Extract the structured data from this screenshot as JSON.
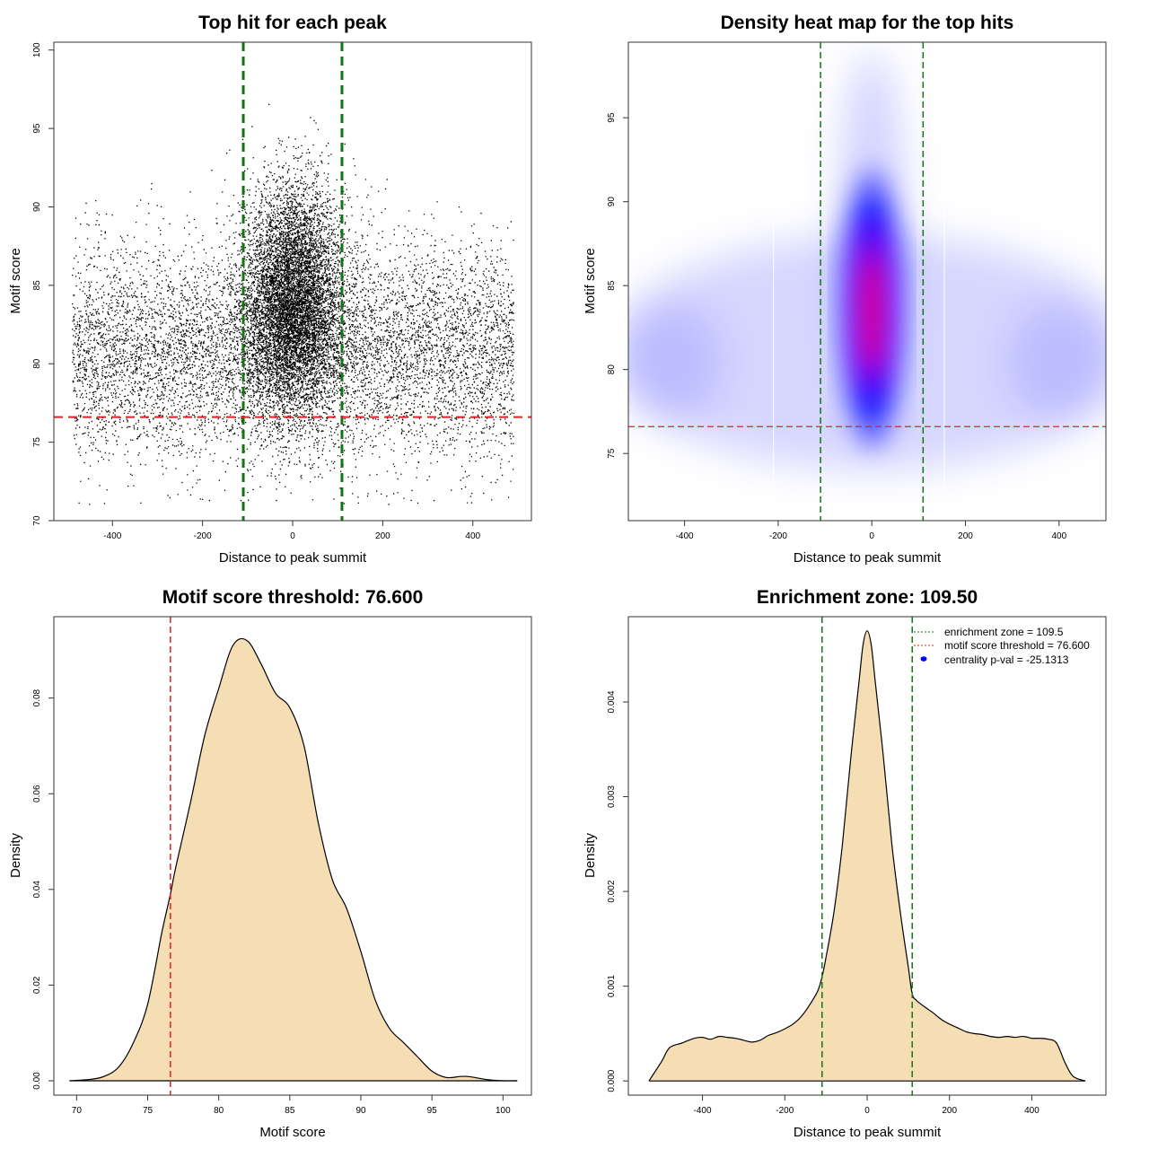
{
  "colors": {
    "points": "#000000",
    "threshold_line": "#dd2222",
    "zone_line": "#117711",
    "fill": "#f5deb3",
    "heat_low": "#ffffff",
    "heat_mid": "#0000ff",
    "heat_high": "#ff0000",
    "centrality_point": "#0000ff"
  },
  "chart_data": [
    {
      "type": "scatter",
      "title": "Top hit for each peak",
      "xlabel": "Distance to peak summit",
      "ylabel": "Motif score",
      "xlim": [
        -530,
        530
      ],
      "ylim": [
        70,
        100.5
      ],
      "xticks": [
        -400,
        -200,
        0,
        200,
        400
      ],
      "yticks": [
        70,
        75,
        80,
        85,
        90,
        95,
        100
      ],
      "threshold": 76.6,
      "zone": [
        -109.5,
        109.5
      ],
      "n_points": 16000
    },
    {
      "type": "heatmap",
      "title": "Density heat map for the top hits",
      "xlabel": "Distance to peak summit",
      "ylabel": "Motif score",
      "xlim": [
        -520,
        500
      ],
      "ylim": [
        71,
        99.5
      ],
      "xticks": [
        -400,
        -200,
        0,
        200,
        400
      ],
      "yticks": [
        75,
        80,
        85,
        90,
        95
      ],
      "threshold": 76.6,
      "zone": [
        -109.5,
        109.5
      ]
    },
    {
      "type": "area",
      "title": "Motif score threshold: 76.600",
      "xlabel": "Motif score",
      "ylabel": "Density",
      "xlim": [
        68.4,
        102
      ],
      "ylim": [
        -0.003,
        0.097
      ],
      "xticks": [
        70,
        75,
        80,
        85,
        90,
        95,
        100
      ],
      "yticks": [
        0.0,
        0.02,
        0.04,
        0.06,
        0.08
      ],
      "ytick_labels": [
        "0.00",
        "0.02",
        "0.04",
        "0.06",
        "0.08"
      ],
      "threshold": 76.6,
      "x": [
        69.5,
        71,
        72,
        73,
        74,
        75,
        76,
        76.6,
        77,
        78,
        79,
        80,
        81,
        82,
        83,
        84,
        85,
        86,
        87,
        88,
        89,
        90,
        91,
        92,
        93,
        94,
        95,
        96,
        97,
        97.5,
        98,
        99,
        100,
        101
      ],
      "y": [
        0.0,
        0.0003,
        0.001,
        0.003,
        0.008,
        0.016,
        0.031,
        0.039,
        0.045,
        0.058,
        0.072,
        0.082,
        0.091,
        0.092,
        0.087,
        0.081,
        0.078,
        0.07,
        0.054,
        0.042,
        0.036,
        0.027,
        0.017,
        0.011,
        0.008,
        0.005,
        0.002,
        0.0007,
        0.0009,
        0.0009,
        0.0007,
        0.0002,
        0.0,
        0.0
      ]
    },
    {
      "type": "area",
      "title": "Enrichment zone: 109.50",
      "xlabel": "Distance to peak summit",
      "ylabel": "Density",
      "xlim": [
        -580,
        580
      ],
      "ylim": [
        -0.00015,
        0.0049
      ],
      "xticks": [
        -400,
        -200,
        0,
        200,
        400
      ],
      "yticks": [
        0.0,
        0.001,
        0.002,
        0.003,
        0.004
      ],
      "ytick_labels": [
        "0.000",
        "0.001",
        "0.002",
        "0.003",
        "0.004"
      ],
      "zone": [
        -109.5,
        109.5
      ],
      "x": [
        -530,
        -500,
        -480,
        -450,
        -420,
        -400,
        -380,
        -360,
        -340,
        -320,
        -300,
        -280,
        -260,
        -240,
        -220,
        -200,
        -180,
        -160,
        -140,
        -120,
        -109.5,
        -100,
        -80,
        -60,
        -40,
        -20,
        -10,
        0,
        10,
        20,
        40,
        60,
        80,
        100,
        109.5,
        120,
        140,
        160,
        180,
        200,
        220,
        240,
        260,
        280,
        300,
        320,
        340,
        360,
        380,
        400,
        420,
        440,
        460,
        480,
        500,
        530
      ],
      "y": [
        0.0,
        0.0002,
        0.00035,
        0.0004,
        0.00045,
        0.00046,
        0.00044,
        0.00047,
        0.00046,
        0.00045,
        0.00043,
        0.00041,
        0.00043,
        0.00048,
        0.00051,
        0.00055,
        0.0006,
        0.00068,
        0.0008,
        0.00095,
        0.0011,
        0.0013,
        0.0018,
        0.0025,
        0.0034,
        0.0042,
        0.0046,
        0.00475,
        0.0046,
        0.0042,
        0.0034,
        0.0025,
        0.0018,
        0.0012,
        0.00092,
        0.00085,
        0.00078,
        0.00072,
        0.00065,
        0.0006,
        0.00056,
        0.00052,
        0.0005,
        0.00049,
        0.00047,
        0.00046,
        0.00047,
        0.00046,
        0.00047,
        0.00045,
        0.00045,
        0.00044,
        0.0004,
        0.0002,
        5e-05,
        0.0
      ],
      "legend": {
        "position": "top-right",
        "entries": [
          "enrichment zone = 109.5",
          "motif score threshold = 76.600",
          "centrality p-val = -25.1313"
        ]
      }
    }
  ]
}
